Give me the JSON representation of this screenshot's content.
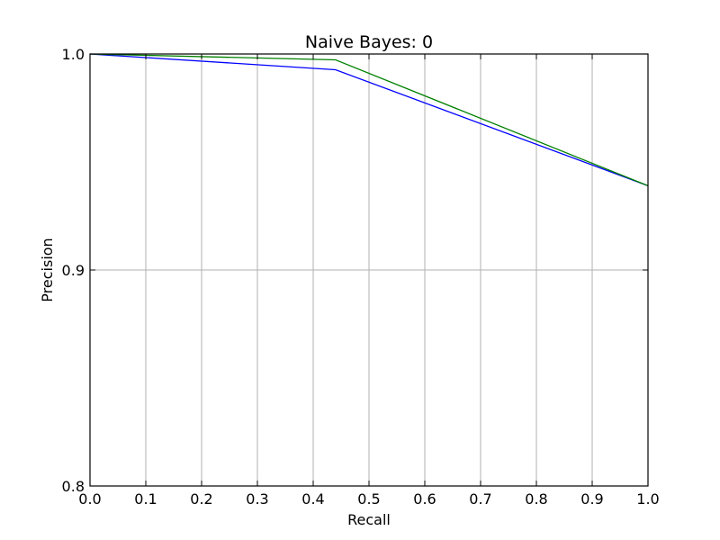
{
  "chart_data": {
    "type": "line",
    "title": "Naive Bayes: 0",
    "xlabel": "Recall",
    "ylabel": "Precision",
    "xlim": [
      0.0,
      1.0
    ],
    "ylim": [
      0.8,
      1.0
    ],
    "grid": true,
    "x_ticks": [
      {
        "value": 0.0,
        "label": "0.0"
      },
      {
        "value": 0.1,
        "label": "0.1"
      },
      {
        "value": 0.2,
        "label": "0.2"
      },
      {
        "value": 0.3,
        "label": "0.3"
      },
      {
        "value": 0.4,
        "label": "0.4"
      },
      {
        "value": 0.5,
        "label": "0.5"
      },
      {
        "value": 0.6,
        "label": "0.6"
      },
      {
        "value": 0.7,
        "label": "0.7"
      },
      {
        "value": 0.8,
        "label": "0.8"
      },
      {
        "value": 0.9,
        "label": "0.9"
      },
      {
        "value": 1.0,
        "label": "1.0"
      }
    ],
    "y_ticks": [
      {
        "value": 0.8,
        "label": "0.8"
      },
      {
        "value": 0.9,
        "label": "0.9"
      },
      {
        "value": 1.0,
        "label": "1.0"
      }
    ],
    "series": [
      {
        "color": "#0000ff",
        "x": [
          0.0,
          0.44,
          1.0
        ],
        "y": [
          1.0,
          0.9927,
          0.939
        ]
      },
      {
        "color": "#008000",
        "x": [
          0.0,
          0.44,
          1.0
        ],
        "y": [
          1.0,
          0.9973,
          0.939
        ]
      }
    ]
  }
}
